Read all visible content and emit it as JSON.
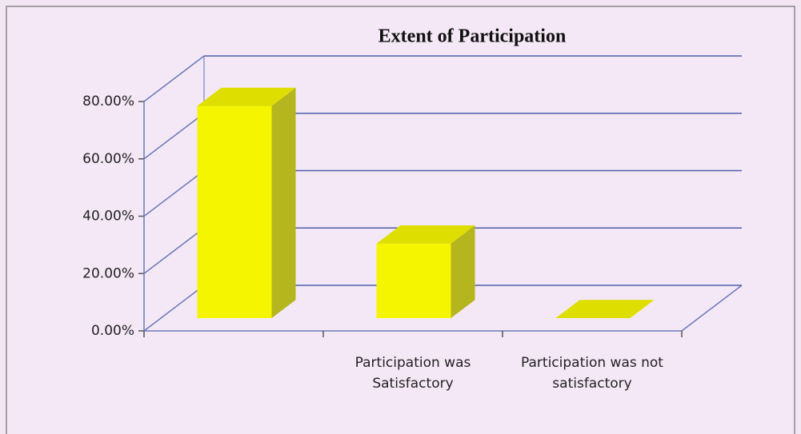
{
  "chart_data": {
    "type": "bar3d",
    "title": "Extent of Participation",
    "categories": [
      null,
      "Participation was Satisfactory",
      "Participation was not satisfactory"
    ],
    "values": [
      74,
      26,
      0
    ],
    "color": "#f5f500",
    "ylim": [
      0,
      80
    ],
    "yticks": [
      {
        "value": 0,
        "label": "0.00%"
      },
      {
        "value": 20,
        "label": "20.00%"
      },
      {
        "value": 40,
        "label": "40.00%"
      },
      {
        "value": 60,
        "label": "60.00%"
      },
      {
        "value": 80,
        "label": "80.00%"
      }
    ],
    "grid": true
  }
}
